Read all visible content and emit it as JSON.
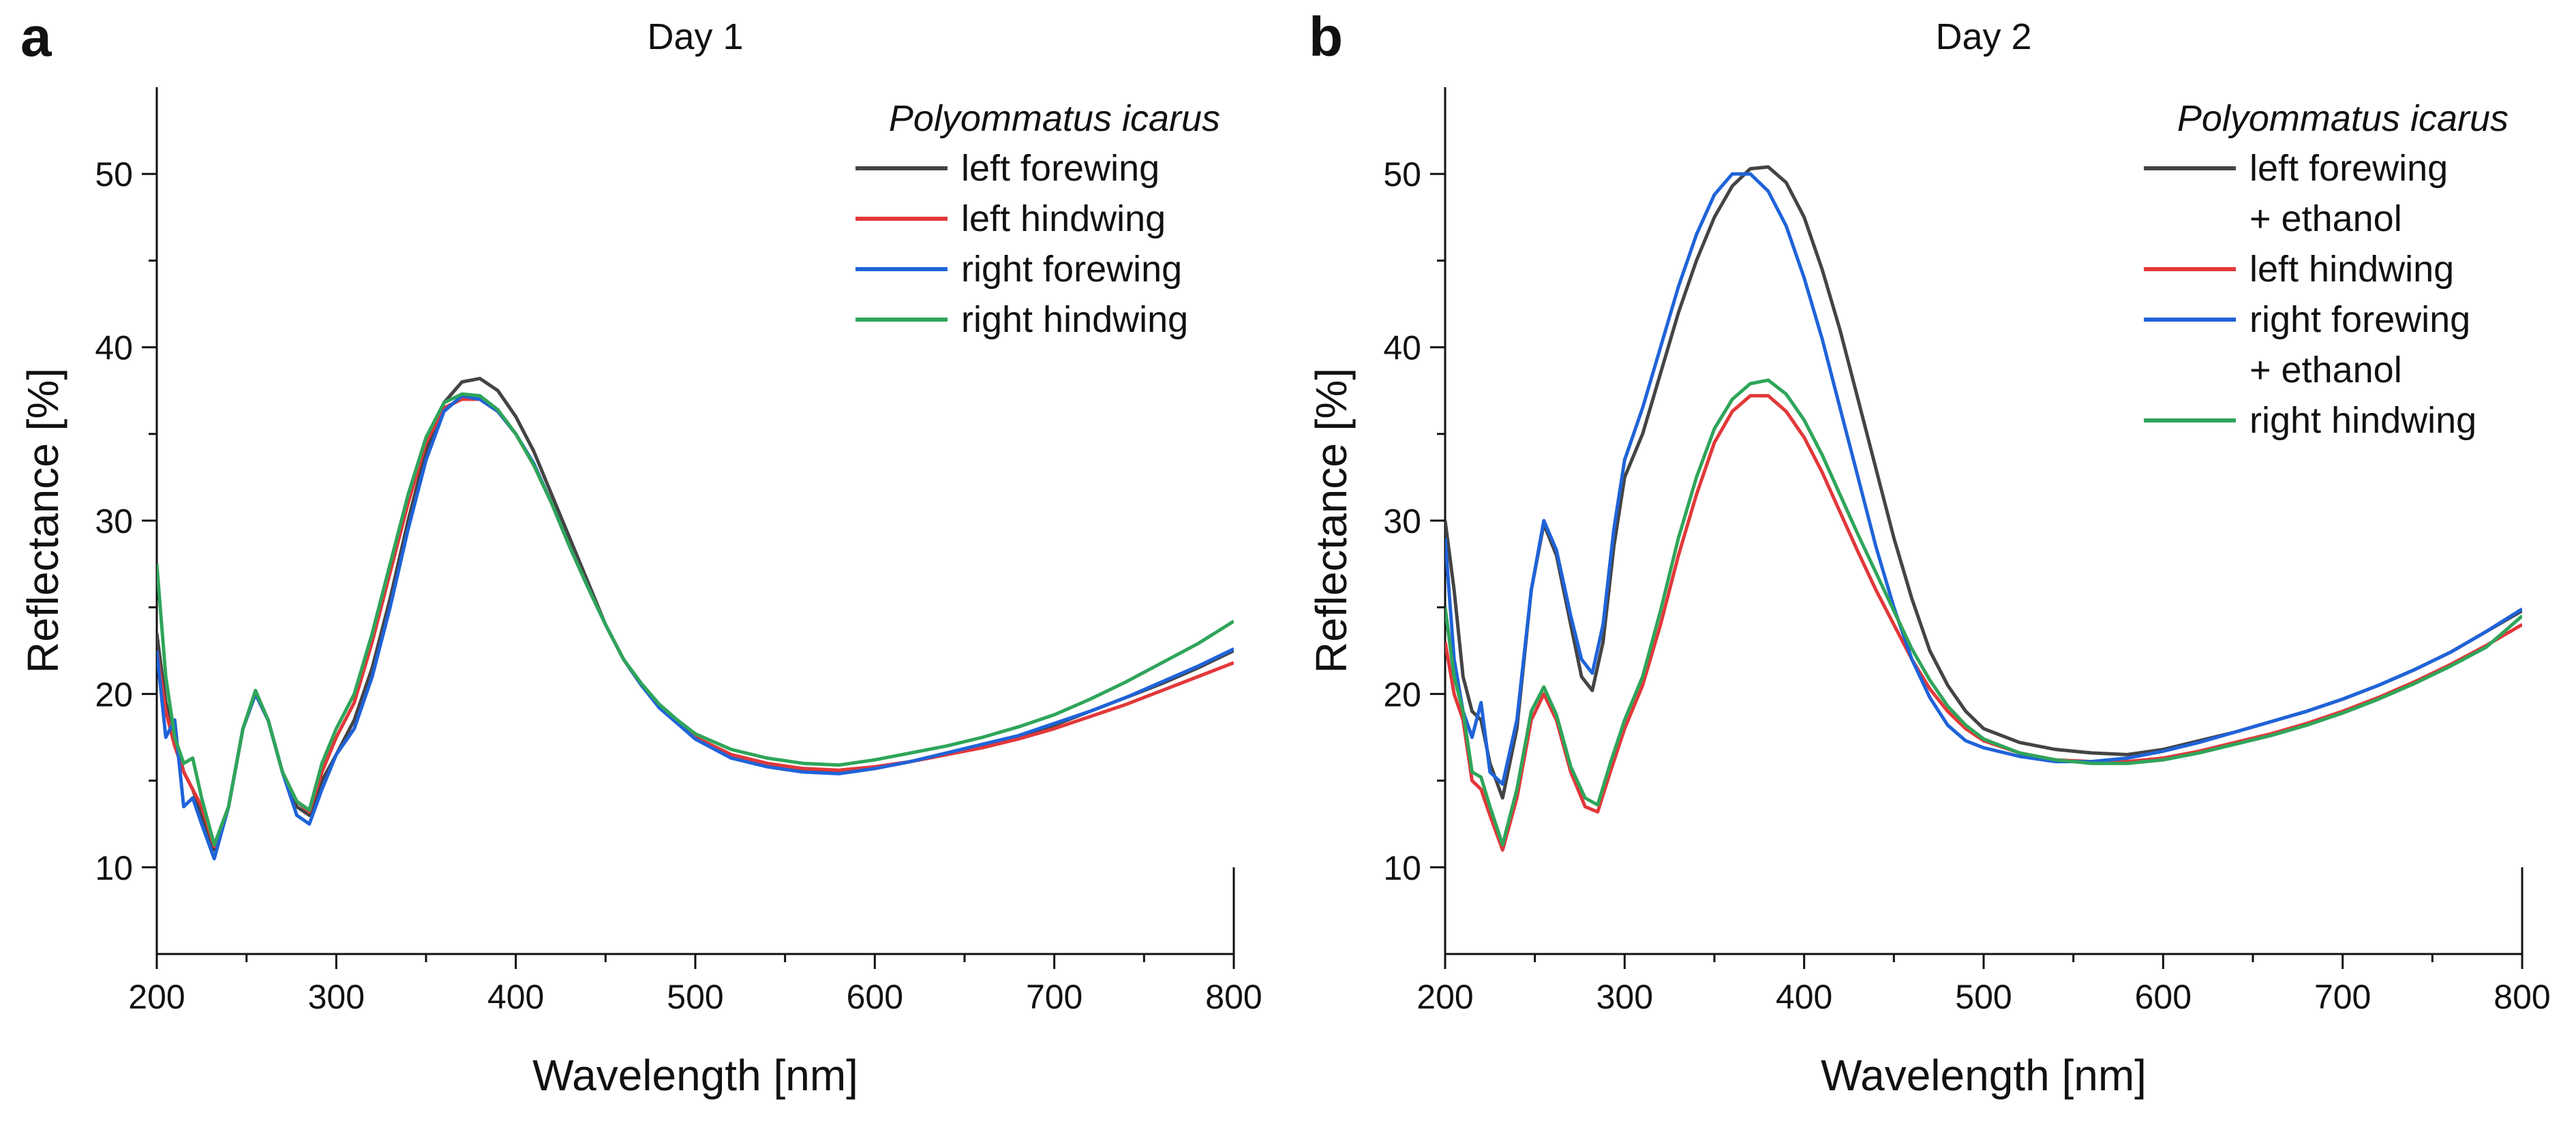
{
  "chart_data": [
    {
      "panel_label": "a",
      "type": "line",
      "title": "Day 1",
      "xlabel": "Wavelength [nm]",
      "ylabel": "Reflectance [%]",
      "xlim": [
        200,
        800
      ],
      "ylim": [
        5,
        55
      ],
      "xticks": [
        200,
        300,
        400,
        500,
        600,
        700,
        800
      ],
      "yticks": [
        10,
        20,
        30,
        40,
        50
      ],
      "grid": false,
      "legend_placement": "top-right",
      "legend_title": "Polyommatus icarus",
      "series": [
        {
          "name": "left forewing",
          "legend_lines": [
            "left forewing"
          ],
          "color": "#444444",
          "x": [
            200,
            205,
            210,
            215,
            220,
            225,
            232,
            240,
            248,
            255,
            262,
            270,
            278,
            285,
            292,
            300,
            310,
            320,
            330,
            340,
            350,
            360,
            370,
            380,
            390,
            400,
            410,
            420,
            430,
            440,
            450,
            460,
            470,
            480,
            490,
            500,
            520,
            540,
            560,
            580,
            600,
            620,
            640,
            660,
            680,
            700,
            720,
            740,
            760,
            780,
            800
          ],
          "y": [
            23.5,
            19.5,
            17.5,
            15.5,
            14.5,
            13,
            11,
            13.5,
            18,
            20,
            18.5,
            15.5,
            13.5,
            13,
            15,
            16.5,
            18.5,
            21.5,
            25.5,
            30,
            34,
            36.8,
            38,
            38.2,
            37.5,
            36,
            34,
            31.5,
            29,
            26.5,
            24,
            22,
            20.5,
            19.3,
            18.4,
            17.5,
            16.5,
            16,
            15.6,
            15.5,
            15.7,
            16.1,
            16.5,
            17,
            17.5,
            18.2,
            19,
            19.8,
            20.6,
            21.5,
            22.5
          ]
        },
        {
          "name": "left hindwing",
          "legend_lines": [
            "left hindwing"
          ],
          "color": "#e2383a",
          "x": [
            200,
            205,
            210,
            215,
            220,
            225,
            232,
            240,
            248,
            255,
            262,
            270,
            278,
            285,
            292,
            300,
            310,
            320,
            330,
            340,
            350,
            360,
            370,
            380,
            390,
            400,
            410,
            420,
            430,
            440,
            450,
            460,
            470,
            480,
            490,
            500,
            520,
            540,
            560,
            580,
            600,
            620,
            640,
            660,
            680,
            700,
            720,
            740,
            760,
            780,
            800
          ],
          "y": [
            22.5,
            19,
            17,
            15.5,
            14.5,
            13.5,
            11.2,
            13.5,
            18,
            20,
            18.5,
            15.5,
            13.8,
            13.2,
            15.5,
            17.5,
            19.5,
            23,
            27,
            31,
            34.5,
            36.5,
            37,
            37,
            36.3,
            35,
            33.2,
            31,
            28.5,
            26.2,
            24,
            22,
            20.5,
            19.3,
            18.4,
            17.5,
            16.5,
            16,
            15.7,
            15.6,
            15.8,
            16.1,
            16.5,
            16.9,
            17.4,
            18,
            18.7,
            19.4,
            20.2,
            21,
            21.8
          ]
        },
        {
          "name": "right forewing",
          "legend_lines": [
            "right forewing"
          ],
          "color": "#1f63d9",
          "x": [
            200,
            205,
            210,
            215,
            220,
            225,
            232,
            240,
            248,
            255,
            262,
            270,
            278,
            285,
            292,
            300,
            310,
            320,
            330,
            340,
            350,
            360,
            370,
            380,
            390,
            400,
            410,
            420,
            430,
            440,
            450,
            460,
            470,
            480,
            490,
            500,
            520,
            540,
            560,
            580,
            600,
            620,
            640,
            660,
            680,
            700,
            720,
            740,
            760,
            780,
            800
          ],
          "y": [
            22.5,
            17.5,
            18.5,
            13.5,
            14,
            12.5,
            10.5,
            13.5,
            18,
            20,
            18.5,
            15.5,
            13,
            12.5,
            14.5,
            16.5,
            18,
            21,
            25,
            29.5,
            33.5,
            36.3,
            37.2,
            37,
            36.3,
            35,
            33.3,
            31,
            28.5,
            26.2,
            24,
            22,
            20.5,
            19.2,
            18.3,
            17.4,
            16.3,
            15.8,
            15.5,
            15.4,
            15.7,
            16.1,
            16.6,
            17.1,
            17.6,
            18.3,
            19,
            19.8,
            20.7,
            21.6,
            22.6
          ]
        },
        {
          "name": "right hindwing",
          "legend_lines": [
            "right hindwing"
          ],
          "color": "#2fa55a",
          "x": [
            200,
            205,
            210,
            215,
            220,
            225,
            232,
            240,
            248,
            255,
            262,
            270,
            278,
            285,
            292,
            300,
            310,
            320,
            330,
            340,
            350,
            360,
            370,
            380,
            390,
            400,
            410,
            420,
            430,
            440,
            450,
            460,
            470,
            480,
            490,
            500,
            520,
            540,
            560,
            580,
            600,
            620,
            640,
            660,
            680,
            700,
            720,
            740,
            760,
            780,
            800
          ],
          "y": [
            27.5,
            21,
            17.5,
            16,
            16.3,
            14,
            11.3,
            13.5,
            18,
            20.2,
            18.5,
            15.5,
            13.8,
            13.3,
            16,
            18,
            20,
            23.5,
            27.5,
            31.5,
            34.8,
            36.8,
            37.3,
            37.2,
            36.4,
            35,
            33.2,
            31,
            28.5,
            26.2,
            24,
            22,
            20.6,
            19.4,
            18.5,
            17.7,
            16.8,
            16.3,
            16,
            15.9,
            16.2,
            16.6,
            17,
            17.5,
            18.1,
            18.8,
            19.7,
            20.7,
            21.8,
            22.9,
            24.2
          ]
        }
      ]
    },
    {
      "panel_label": "b",
      "type": "line",
      "title": "Day 2",
      "xlabel": "Wavelength [nm]",
      "ylabel": "Reflectance [%]",
      "xlim": [
        200,
        800
      ],
      "ylim": [
        5,
        55
      ],
      "xticks": [
        200,
        300,
        400,
        500,
        600,
        700,
        800
      ],
      "yticks": [
        10,
        20,
        30,
        40,
        50
      ],
      "grid": false,
      "legend_placement": "top-right",
      "legend_title": "Polyommatus icarus",
      "series": [
        {
          "name": "left forewing + ethanol",
          "legend_lines": [
            "left forewing",
            "+ ethanol"
          ],
          "color": "#444444",
          "x": [
            200,
            205,
            210,
            215,
            220,
            225,
            232,
            240,
            248,
            255,
            262,
            270,
            276,
            282,
            288,
            294,
            300,
            310,
            320,
            330,
            340,
            350,
            360,
            370,
            380,
            390,
            400,
            410,
            420,
            430,
            440,
            450,
            460,
            470,
            480,
            490,
            500,
            520,
            540,
            560,
            580,
            600,
            620,
            640,
            660,
            680,
            700,
            720,
            740,
            760,
            780,
            800
          ],
          "y": [
            30,
            26,
            21,
            19,
            18.5,
            16,
            14,
            18,
            26,
            29.8,
            28,
            24,
            21,
            20.2,
            23,
            28.5,
            32.5,
            35,
            38.5,
            42,
            45,
            47.5,
            49.3,
            50.3,
            50.4,
            49.5,
            47.5,
            44.5,
            41,
            37,
            33,
            29,
            25.5,
            22.5,
            20.5,
            19,
            18,
            17.2,
            16.8,
            16.6,
            16.5,
            16.8,
            17.3,
            17.8,
            18.4,
            19,
            19.7,
            20.5,
            21.4,
            22.4,
            23.6,
            24.8
          ]
        },
        {
          "name": "left hindwing",
          "legend_lines": [
            "left hindwing"
          ],
          "color": "#e2383a",
          "x": [
            200,
            205,
            210,
            215,
            220,
            225,
            232,
            240,
            248,
            255,
            262,
            270,
            278,
            285,
            292,
            300,
            310,
            320,
            330,
            340,
            350,
            360,
            370,
            380,
            390,
            400,
            410,
            420,
            430,
            440,
            450,
            460,
            470,
            480,
            490,
            500,
            520,
            540,
            560,
            580,
            600,
            620,
            640,
            660,
            680,
            700,
            720,
            740,
            760,
            780,
            800
          ],
          "y": [
            23,
            20,
            18.5,
            15,
            14.5,
            13,
            11,
            14,
            18.5,
            20,
            18.5,
            15.5,
            13.5,
            13.2,
            15.5,
            18,
            20.5,
            24,
            28,
            31.5,
            34.5,
            36.3,
            37.2,
            37.2,
            36.3,
            34.8,
            32.8,
            30.5,
            28.2,
            26,
            24,
            22,
            20.3,
            19,
            18,
            17.3,
            16.6,
            16.2,
            16.1,
            16.1,
            16.3,
            16.7,
            17.2,
            17.7,
            18.3,
            19,
            19.8,
            20.7,
            21.7,
            22.8,
            24
          ]
        },
        {
          "name": "right forewing + ethanol",
          "legend_lines": [
            "right forewing",
            "+ ethanol"
          ],
          "color": "#1f63d9",
          "x": [
            200,
            205,
            210,
            215,
            220,
            225,
            232,
            240,
            248,
            255,
            262,
            270,
            276,
            282,
            288,
            294,
            300,
            310,
            320,
            330,
            340,
            350,
            360,
            370,
            380,
            390,
            400,
            410,
            420,
            430,
            440,
            450,
            460,
            470,
            480,
            490,
            500,
            520,
            540,
            560,
            580,
            600,
            620,
            640,
            660,
            680,
            700,
            720,
            740,
            760,
            780,
            800
          ],
          "y": [
            29,
            22,
            19,
            17.5,
            19.5,
            15.5,
            14.8,
            18.5,
            26,
            30,
            28.3,
            24.5,
            22,
            21.2,
            24,
            29.5,
            33.5,
            36.5,
            40,
            43.5,
            46.5,
            48.8,
            50,
            50,
            49,
            47,
            44,
            40.5,
            36.5,
            32.5,
            28.5,
            25,
            22,
            19.8,
            18.2,
            17.3,
            16.9,
            16.4,
            16.1,
            16.1,
            16.3,
            16.7,
            17.2,
            17.8,
            18.4,
            19,
            19.7,
            20.5,
            21.4,
            22.4,
            23.6,
            24.9
          ]
        },
        {
          "name": "right hindwing",
          "legend_lines": [
            "right hindwing"
          ],
          "color": "#2fa55a",
          "x": [
            200,
            205,
            210,
            215,
            220,
            225,
            232,
            240,
            248,
            255,
            262,
            270,
            278,
            285,
            292,
            300,
            310,
            320,
            330,
            340,
            350,
            360,
            370,
            380,
            390,
            400,
            410,
            420,
            430,
            440,
            450,
            460,
            470,
            480,
            490,
            500,
            520,
            540,
            560,
            580,
            600,
            620,
            640,
            660,
            680,
            700,
            720,
            740,
            760,
            780,
            800
          ],
          "y": [
            25,
            21,
            19,
            15.5,
            15.2,
            13.5,
            11.3,
            14.5,
            19,
            20.4,
            18.8,
            15.8,
            14,
            13.6,
            16,
            18.5,
            21,
            24.8,
            29,
            32.5,
            35.3,
            37,
            37.9,
            38.1,
            37.3,
            35.8,
            33.8,
            31.5,
            29.2,
            27,
            24.8,
            22.6,
            20.8,
            19.3,
            18.2,
            17.4,
            16.6,
            16.2,
            16,
            16,
            16.2,
            16.6,
            17.1,
            17.6,
            18.2,
            18.9,
            19.7,
            20.6,
            21.6,
            22.7,
            24.5
          ]
        }
      ]
    }
  ]
}
